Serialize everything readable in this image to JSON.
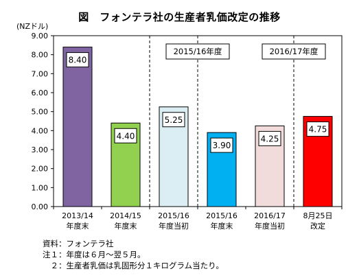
{
  "chart_data": {
    "type": "bar",
    "title": "図　フォンテラ社の生産者乳価改定の推移",
    "unit_label": "(NZドル)",
    "categories": [
      [
        "2013/14",
        "年度末"
      ],
      [
        "2014/15",
        "年度末"
      ],
      [
        "2015/16",
        "年度当初"
      ],
      [
        "2015/16",
        "年度末"
      ],
      [
        "2016/17",
        "年度当初"
      ],
      [
        "8月25日",
        "改定"
      ]
    ],
    "values": [
      8.4,
      4.4,
      5.25,
      3.9,
      4.25,
      4.75
    ],
    "value_labels": [
      "8.40",
      "4.40",
      "5.25",
      "3.90",
      "4.25",
      "4.75"
    ],
    "bar_colors": [
      "#8064a2",
      "#92d050",
      "#dbeef4",
      "#00b0f0",
      "#f2dcdb",
      "#ff0000"
    ],
    "ylim": [
      0,
      9
    ],
    "yticks": [
      "0.00",
      "1.00",
      "2.00",
      "3.00",
      "4.00",
      "5.00",
      "6.00",
      "7.00",
      "8.00",
      "9.00"
    ],
    "period_labels": [
      "2015/16年度",
      "2016/17年度"
    ],
    "grid": false
  },
  "notes": {
    "source": "資料：フォンテラ社",
    "note1": "注１：年度は６月～翌５月。",
    "note2": "　２：生産者乳価は乳固形分１キログラム当たり。"
  }
}
